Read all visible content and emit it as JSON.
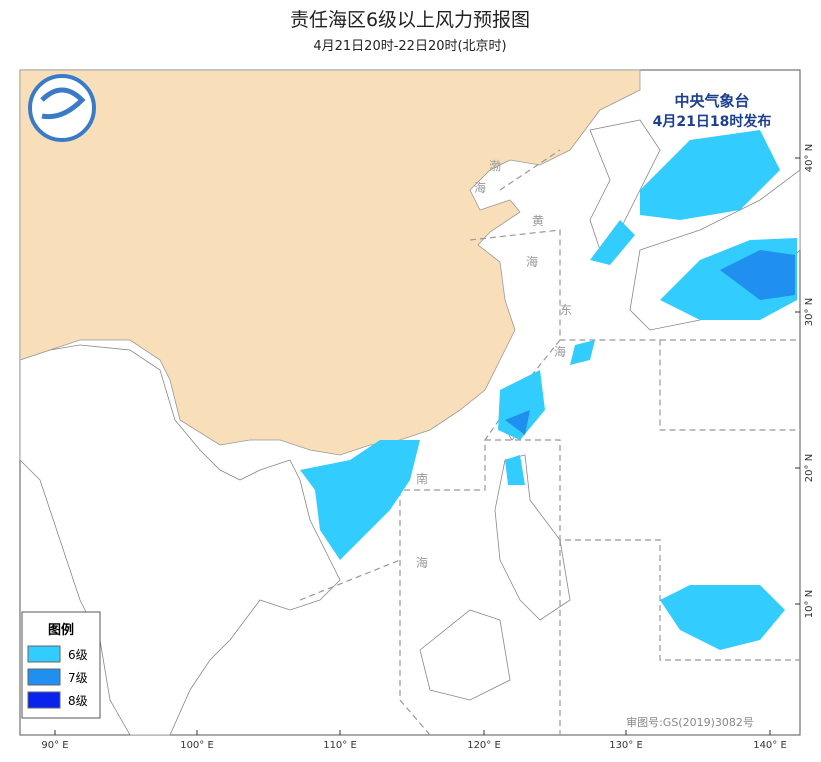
{
  "header": {
    "title": "责任海区6级以上风力预报图",
    "subtitle": "4月21日20时-22日20时(北京时)"
  },
  "issuer": {
    "agency": "中央气象台",
    "issued": "4月21日18时发布"
  },
  "legend": {
    "title": "图例",
    "items": [
      {
        "label": "6级",
        "color": "#33ccff"
      },
      {
        "label": "7级",
        "color": "#1f8ff0"
      },
      {
        "label": "8级",
        "color": "#0a22ee"
      }
    ]
  },
  "lon_labels": [
    "90° E",
    "100° E",
    "110° E",
    "120° E",
    "130° E",
    "140° E"
  ],
  "lat_labels": [
    "40° N",
    "30° N",
    "20° N",
    "10° N"
  ],
  "sea_labels": [
    "渤",
    "海",
    "黄",
    "海",
    "东",
    "海",
    "南",
    "海"
  ],
  "footer": {
    "approval": "审图号:GS(2019)3082号"
  }
}
